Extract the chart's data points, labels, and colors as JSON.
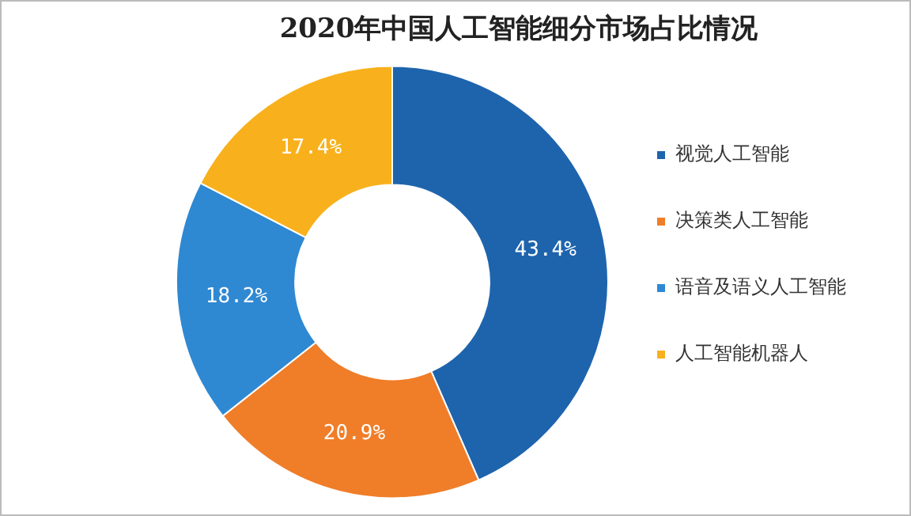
{
  "chart_data": {
    "type": "donut",
    "title": "2020年中国人工智能细分市场占比情况",
    "categories": [
      "视觉人工智能",
      "决策类人工智能",
      "语音及语义人工智能",
      "人工智能机器人"
    ],
    "values": [
      43.4,
      20.9,
      18.2,
      17.4
    ],
    "colors": [
      "#1e64ad",
      "#f07d28",
      "#2f88d2",
      "#f8b11c"
    ],
    "value_labels": [
      "43.4%",
      "20.9%",
      "18.2%",
      "17.4%"
    ],
    "legend": "right"
  }
}
